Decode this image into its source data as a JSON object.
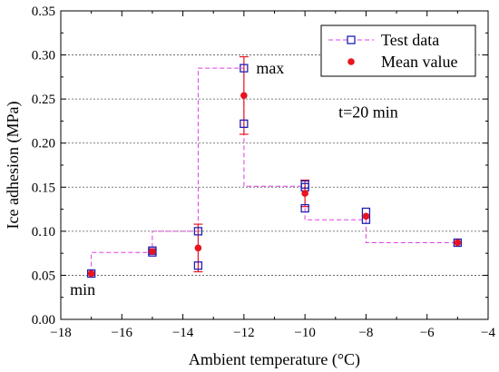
{
  "chart_data": {
    "type": "scatter",
    "xlabel": "Ambient temperature (°C)",
    "ylabel": "Ice adhesion (MPa)",
    "xlim": [
      -18,
      -4
    ],
    "ylim": [
      0,
      0.35
    ],
    "xticks": [
      -18,
      -16,
      -14,
      -12,
      -10,
      -8,
      -6,
      -4
    ],
    "xtick_labels": [
      "−18",
      "−16",
      "−14",
      "−12",
      "−10",
      "−8",
      "−6",
      "−4"
    ],
    "yticks": [
      0.0,
      0.05,
      0.1,
      0.15,
      0.2,
      0.25,
      0.3,
      0.35
    ],
    "ytick_labels": [
      "0.00",
      "0.05",
      "0.10",
      "0.15",
      "0.20",
      "0.25",
      "0.30",
      "0.35"
    ],
    "grid": "horizontal dotted",
    "legend_position": "top-right",
    "series": [
      {
        "name": "Test data",
        "marker": "open-square",
        "color": "#1f1fb4",
        "line_color": "#e040e0",
        "line_style": "dashed-step",
        "points": [
          {
            "x": -17,
            "y": 0.052
          },
          {
            "x": -15,
            "y": 0.076
          },
          {
            "x": -15,
            "y": 0.078
          },
          {
            "x": -13.5,
            "y": 0.1
          },
          {
            "x": -13.5,
            "y": 0.061
          },
          {
            "x": -12,
            "y": 0.285
          },
          {
            "x": -12,
            "y": 0.222
          },
          {
            "x": -10,
            "y": 0.153
          },
          {
            "x": -10,
            "y": 0.15
          },
          {
            "x": -10,
            "y": 0.126
          },
          {
            "x": -8,
            "y": 0.122
          },
          {
            "x": -8,
            "y": 0.113
          },
          {
            "x": -5,
            "y": 0.087
          }
        ],
        "step_line": [
          {
            "x": -17,
            "y": 0.052
          },
          {
            "x": -17,
            "y": 0.076
          },
          {
            "x": -15,
            "y": 0.076
          },
          {
            "x": -15,
            "y": 0.1
          },
          {
            "x": -13.5,
            "y": 0.1
          },
          {
            "x": -13.5,
            "y": 0.285
          },
          {
            "x": -12,
            "y": 0.285
          },
          {
            "x": -12,
            "y": 0.151
          },
          {
            "x": -10,
            "y": 0.151
          },
          {
            "x": -10,
            "y": 0.113
          },
          {
            "x": -8,
            "y": 0.113
          },
          {
            "x": -8,
            "y": 0.087
          },
          {
            "x": -5,
            "y": 0.087
          }
        ]
      },
      {
        "name": "Mean value",
        "marker": "filled-circle",
        "color": "#e8141e",
        "points": [
          {
            "x": -17,
            "y": 0.052
          },
          {
            "x": -15,
            "y": 0.077
          },
          {
            "x": -13.5,
            "y": 0.081,
            "err_low": 0.054,
            "err_high": 0.108
          },
          {
            "x": -12,
            "y": 0.254,
            "err_low": 0.21,
            "err_high": 0.298
          },
          {
            "x": -10,
            "y": 0.143,
            "err_low": 0.128,
            "err_high": 0.158
          },
          {
            "x": -8,
            "y": 0.117
          },
          {
            "x": -5,
            "y": 0.087
          }
        ]
      }
    ],
    "annotations": [
      {
        "text": "max",
        "x": -11.6,
        "y": 0.285
      },
      {
        "text": "min",
        "x": -17.7,
        "y": 0.034
      },
      {
        "text": "t=20 min",
        "x": -8.9,
        "y": 0.235
      }
    ]
  }
}
